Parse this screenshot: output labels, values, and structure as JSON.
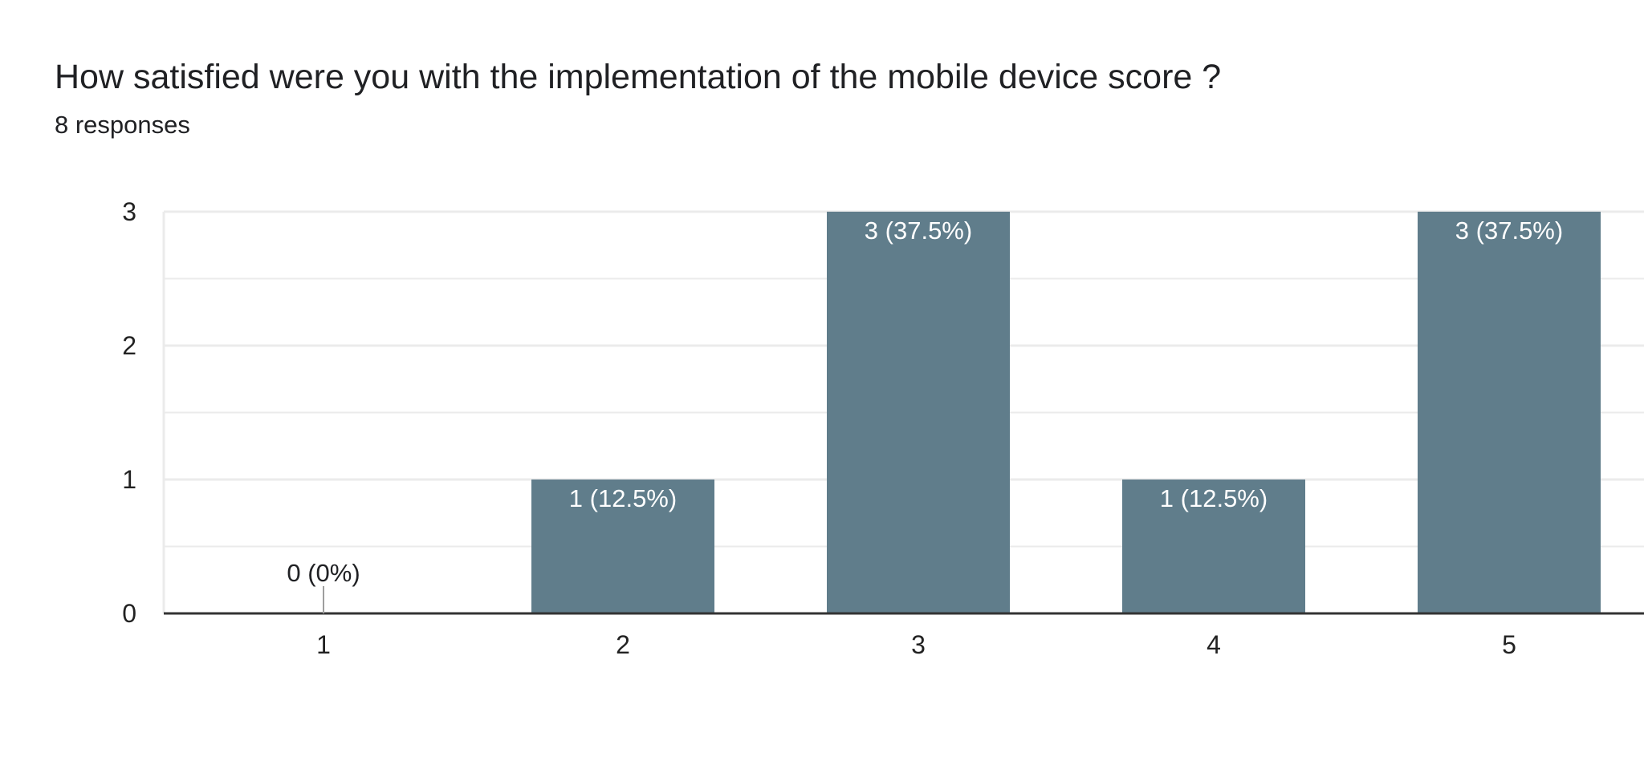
{
  "question": {
    "title": "How satisfied were you with the implementation of the mobile device score ?",
    "responses": "8 responses"
  },
  "colors": {
    "bar": "#607d8b",
    "label_inside": "#ffffff",
    "label_outside": "#202124",
    "gridline": "#ebebeb",
    "axis": "#333333"
  },
  "chart_data": {
    "type": "bar",
    "categories": [
      "1",
      "2",
      "3",
      "4",
      "5"
    ],
    "values": [
      0,
      1,
      3,
      1,
      3
    ],
    "data_labels": [
      "0 (0%)",
      "1 (12.5%)",
      "3 (37.5%)",
      "1 (12.5%)",
      "3 (37.5%)"
    ],
    "yticks": [
      "0",
      "1",
      "2",
      "3"
    ],
    "ylim": [
      0,
      3
    ],
    "grid": true,
    "xlabel": "",
    "ylabel": ""
  }
}
